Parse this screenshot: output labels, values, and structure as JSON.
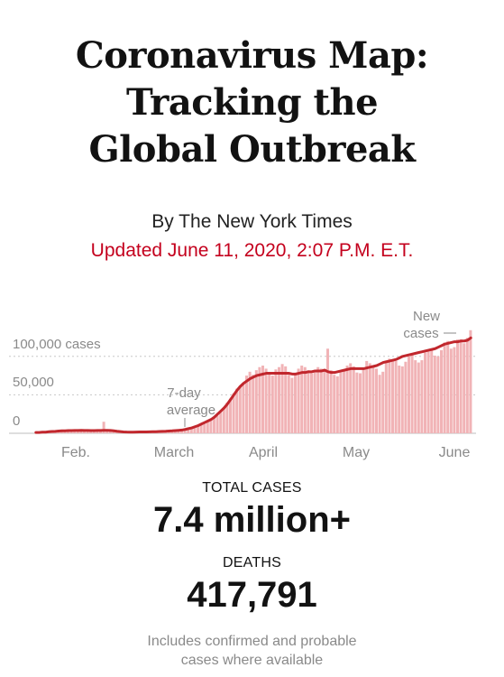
{
  "headline": {
    "lines": [
      "Coronavirus Map:",
      "Tracking the",
      "Global Outbreak"
    ]
  },
  "byline": "By The New York Times",
  "updated": "Updated June 11, 2020, 2:07 P.M. E.T.",
  "colors": {
    "accent_red": "#c4001d",
    "bar_pink": "#f1b3b6",
    "line_red": "#c1272d"
  },
  "chart_data": {
    "type": "bar",
    "x_labels": [
      "Feb.",
      "March",
      "April",
      "May",
      "June"
    ],
    "y_ticks": [
      {
        "value": 100000,
        "label": "100,000 cases"
      },
      {
        "value": 50000,
        "label": "50,000"
      },
      {
        "value": 0,
        "label": "0"
      }
    ],
    "annotations": {
      "average_label": [
        "7-day",
        "average"
      ],
      "new_cases_label": [
        "New",
        "cases"
      ]
    },
    "ylim": [
      0,
      115000
    ],
    "grid": true,
    "series": [
      {
        "name": "New cases",
        "values": [
          500,
          600,
          700,
          800,
          1000,
          1500,
          2000,
          2500,
          3000,
          3500,
          3500,
          4000,
          3800,
          3500,
          4000,
          4000,
          3500,
          3000,
          3000,
          3500,
          3000,
          15000,
          3000,
          2500,
          2000,
          1500,
          1200,
          1000,
          1000,
          1200,
          1500,
          1500,
          2000,
          1800,
          1500,
          1500,
          2000,
          2000,
          2000,
          2200,
          2500,
          2500,
          3000,
          3000,
          3500,
          3500,
          4000,
          5000,
          7000,
          8000,
          10000,
          12000,
          14000,
          17000,
          18000,
          20000,
          23000,
          28000,
          32000,
          40000,
          45000,
          52000,
          58000,
          62000,
          65000,
          75000,
          80000,
          76000,
          82000,
          86000,
          88000,
          84000,
          78000,
          75000,
          83000,
          86000,
          90000,
          87000,
          76000,
          72000,
          77000,
          84000,
          88000,
          86000,
          82000,
          78000,
          80000,
          86000,
          84000,
          84000,
          110000,
          82000,
          76000,
          74000,
          80000,
          82000,
          88000,
          91000,
          87000,
          79000,
          78000,
          84000,
          94000,
          91000,
          88000,
          84000,
          76000,
          80000,
          92000,
          97000,
          96000,
          94000,
          88000,
          87000,
          93000,
          100000,
          102000,
          95000,
          92000,
          95000,
          105000,
          108000,
          110000,
          101000,
          100000,
          108000,
          118000,
          120000,
          110000,
          112000,
          122000,
          122000,
          117000,
          124000,
          134000
        ]
      },
      {
        "name": "7-day average",
        "values": [
          1000,
          1000,
          1500,
          1500,
          2000,
          2300,
          2500,
          3000,
          3200,
          3300,
          3500,
          3500,
          3600,
          3700,
          3800,
          3700,
          3600,
          3500,
          3500,
          3600,
          3600,
          3800,
          3800,
          3700,
          3200,
          2600,
          2200,
          1800,
          1600,
          1500,
          1500,
          1600,
          1700,
          1700,
          1800,
          1900,
          2000,
          2100,
          2300,
          2500,
          2700,
          3000,
          3200,
          3500,
          3800,
          4200,
          5000,
          6000,
          7000,
          8500,
          10000,
          12000,
          14000,
          16000,
          18000,
          21000,
          25000,
          29000,
          33000,
          38000,
          44000,
          50000,
          56000,
          61000,
          65000,
          68000,
          71000,
          73000,
          75000,
          76000,
          77000,
          78000,
          78000,
          78000,
          78000,
          78000,
          78000,
          78000,
          78000,
          77000,
          77000,
          78000,
          79000,
          79000,
          80000,
          80000,
          81000,
          81000,
          81000,
          82000,
          80000,
          79000,
          79000,
          80000,
          81000,
          82000,
          83000,
          84000,
          84000,
          84000,
          84000,
          84000,
          85000,
          86000,
          87000,
          88000,
          90000,
          92000,
          93000,
          94000,
          95000,
          96000,
          98000,
          100000,
          101000,
          102000,
          103000,
          104000,
          105000,
          106000,
          107000,
          108000,
          109000,
          110000,
          112000,
          114000,
          116000,
          117000,
          118000,
          119000,
          119000,
          120000,
          120000,
          121000,
          124000
        ]
      }
    ]
  },
  "stats": {
    "total_cases_label": "TOTAL CASES",
    "total_cases_value": "7.4 million+",
    "deaths_label": "DEATHS",
    "deaths_value": "417,791"
  },
  "note": {
    "lines": [
      "Includes confirmed and probable",
      "cases where available"
    ]
  }
}
